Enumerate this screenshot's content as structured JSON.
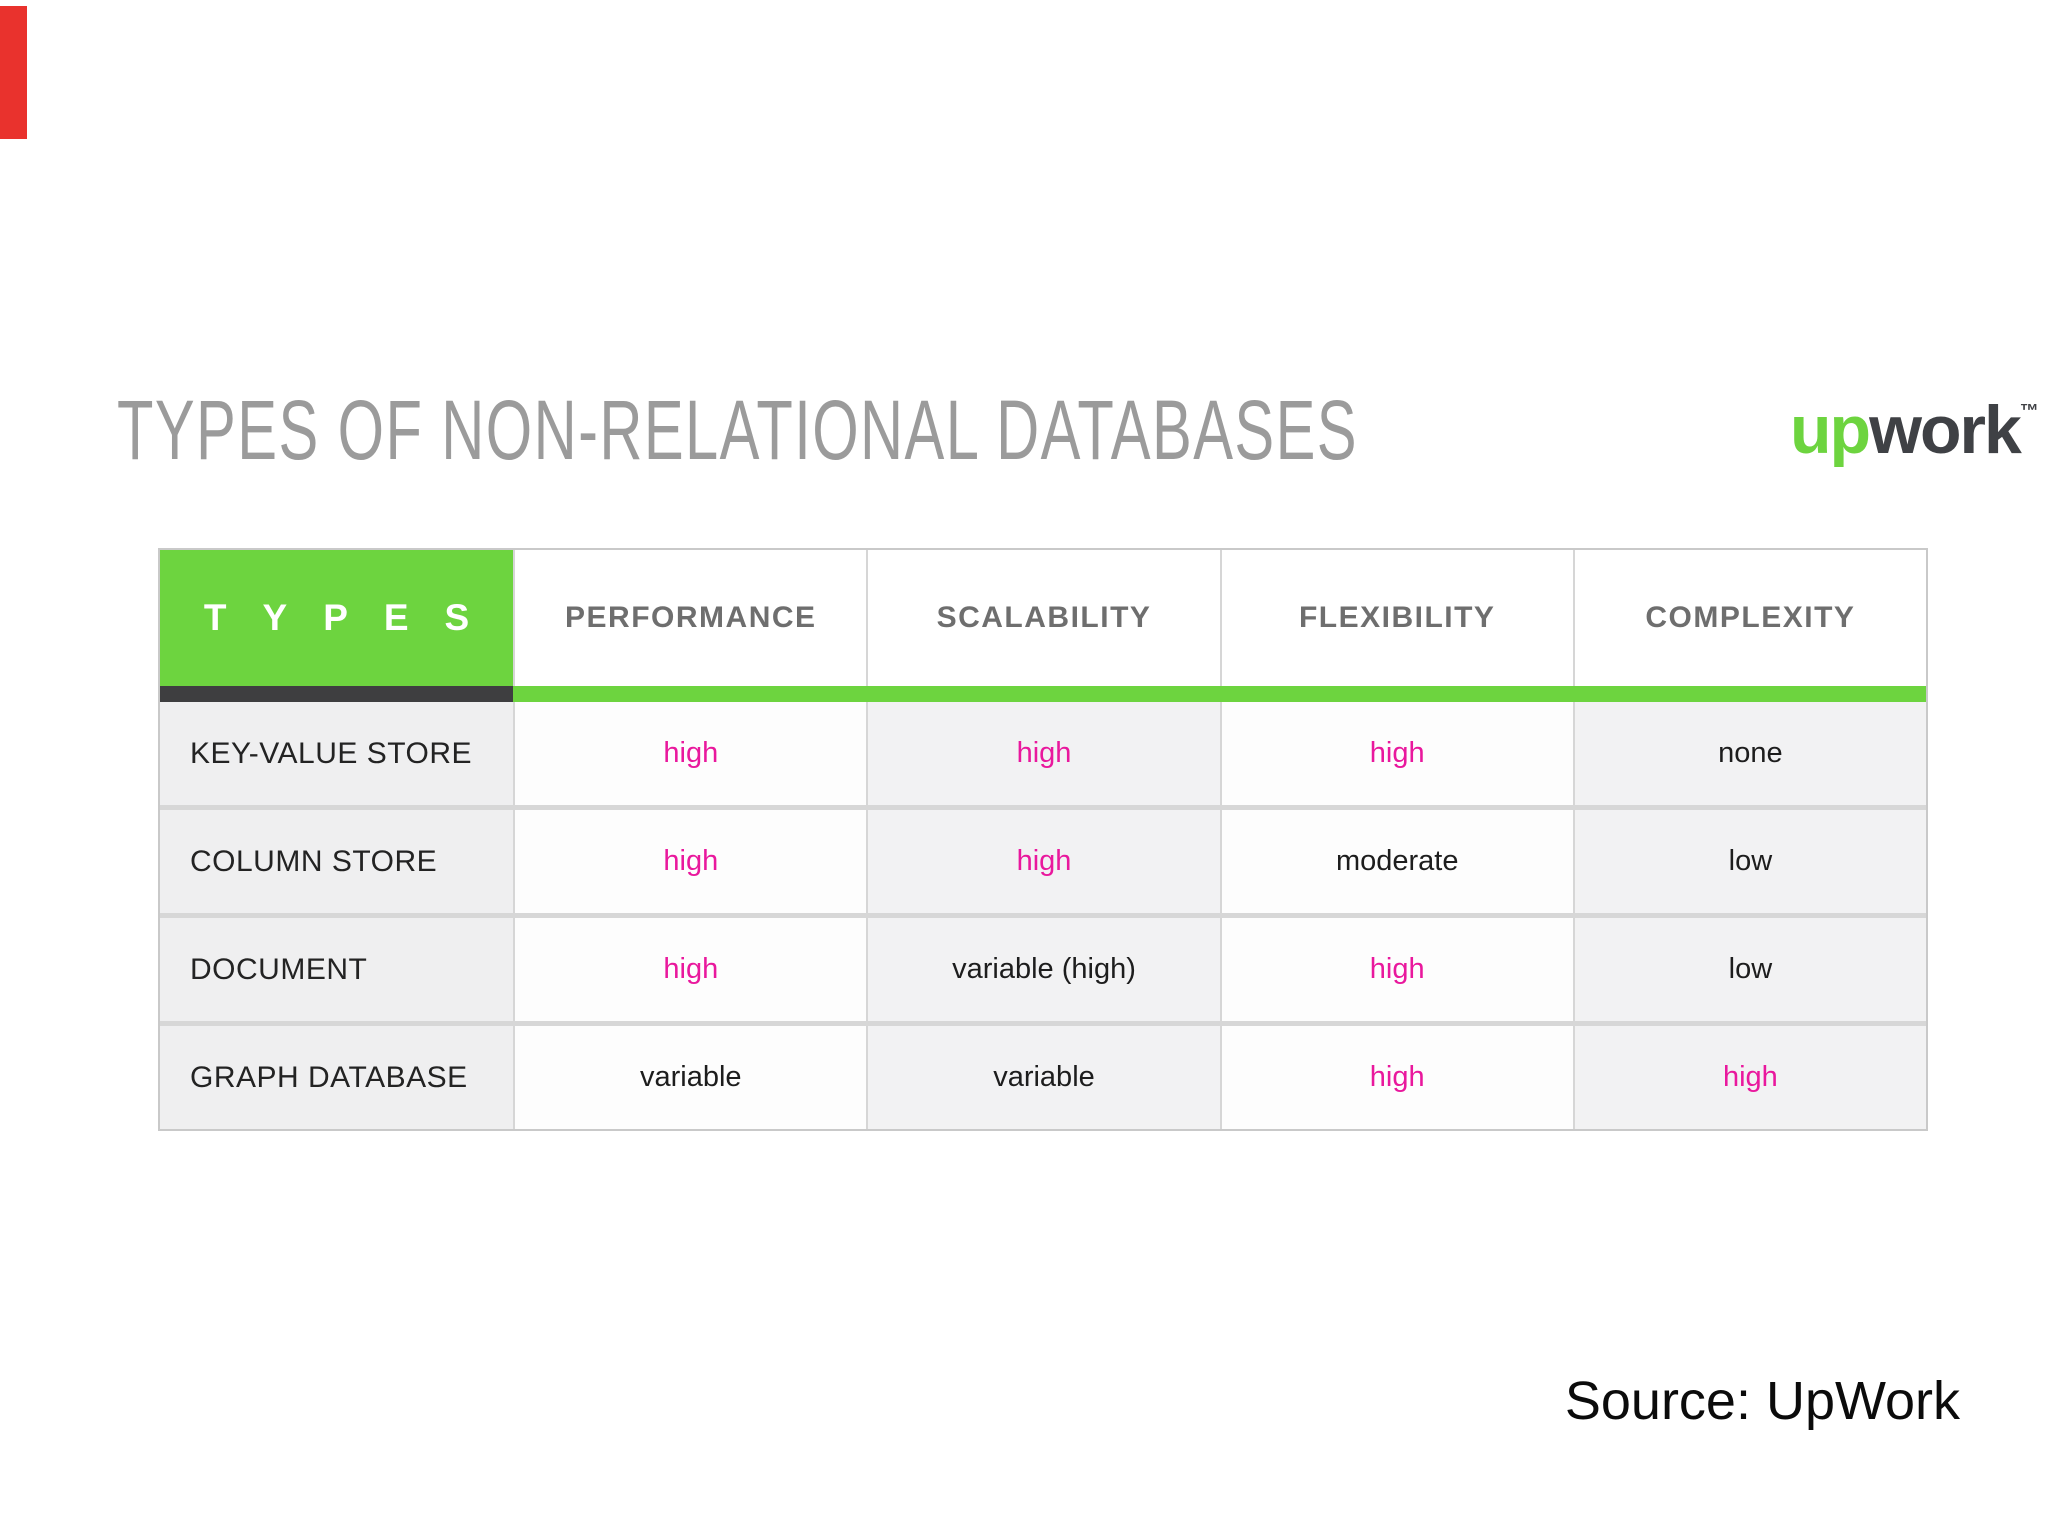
{
  "title": {
    "text": "TYPES OF NON-RELATIONAL DATABASES"
  },
  "logo": {
    "up": "up",
    "work": "work",
    "trademark": "™"
  },
  "table": {
    "header": [
      "TYPES",
      "PERFORMANCE",
      "SCALABILITY",
      "FLEXIBILITY",
      "COMPLEXITY"
    ],
    "rows": [
      {
        "label": "KEY-VALUE STORE",
        "values": [
          {
            "text": "high",
            "pink": true
          },
          {
            "text": "high",
            "pink": true
          },
          {
            "text": "high",
            "pink": true
          },
          {
            "text": "none",
            "pink": false
          }
        ]
      },
      {
        "label": "COLUMN STORE",
        "values": [
          {
            "text": "high",
            "pink": true
          },
          {
            "text": "high",
            "pink": true
          },
          {
            "text": "moderate",
            "pink": false
          },
          {
            "text": "low",
            "pink": false
          }
        ]
      },
      {
        "label": "DOCUMENT",
        "values": [
          {
            "text": "high",
            "pink": true
          },
          {
            "text": "variable (high)",
            "pink": false
          },
          {
            "text": "high",
            "pink": true
          },
          {
            "text": "low",
            "pink": false
          }
        ]
      },
      {
        "label": "GRAPH DATABASE",
        "values": [
          {
            "text": "variable",
            "pink": false
          },
          {
            "text": "variable",
            "pink": false
          },
          {
            "text": "high",
            "pink": true
          },
          {
            "text": "high",
            "pink": true
          }
        ]
      }
    ]
  },
  "source": {
    "text": "Source: UpWork"
  },
  "colors": {
    "green": "#6dd43f",
    "dark_bar": "#3e3e40",
    "pink": "#e9189d",
    "red_marker": "#e9322d",
    "header_text": "#6e6e6e",
    "title_text": "#9b9b9b"
  }
}
